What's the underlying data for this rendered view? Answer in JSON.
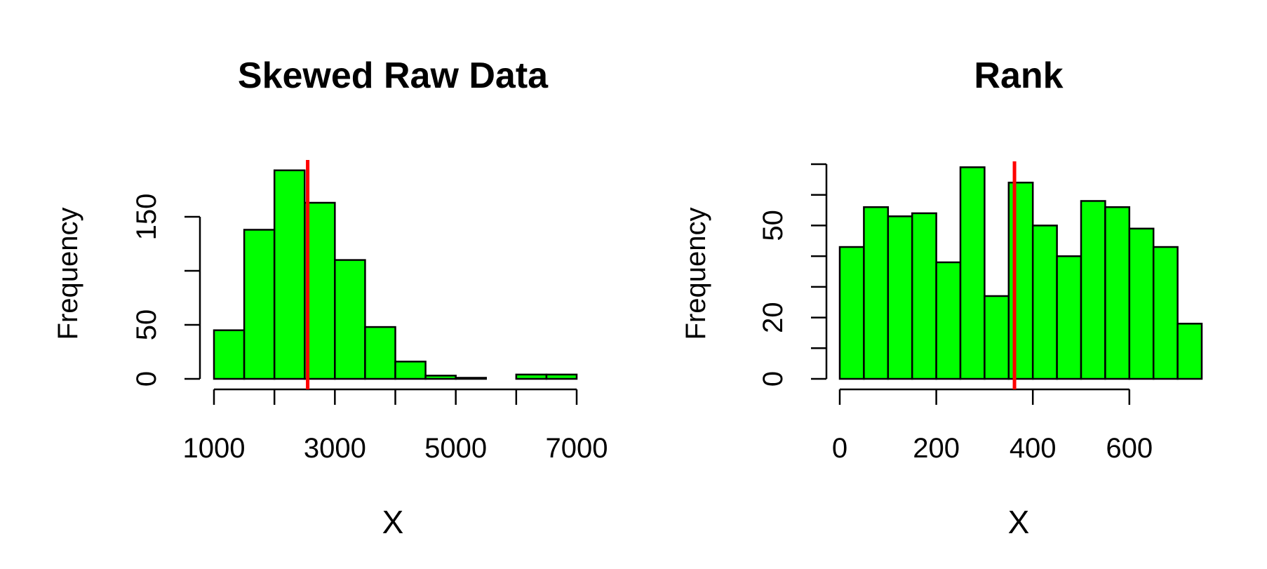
{
  "colors": {
    "bar_fill": "#00ff00",
    "bar_stroke": "#000000",
    "marker_line": "#ff0000"
  },
  "chart_data": [
    {
      "type": "bar",
      "title": "Skewed Raw Data",
      "xlabel": "X",
      "ylabel": "Frequency",
      "bin_edges": [
        1000,
        1500,
        2000,
        2500,
        3000,
        3500,
        4000,
        4500,
        5000,
        5500,
        6000,
        6500,
        7000
      ],
      "values": [
        45,
        138,
        193,
        163,
        110,
        48,
        16,
        3,
        1,
        0,
        4,
        4
      ],
      "xlim": [
        1000,
        7000
      ],
      "ylim": [
        0,
        200
      ],
      "xticks": [
        1000,
        2000,
        3000,
        4000,
        5000,
        6000,
        7000
      ],
      "xtick_labels": [
        "1000",
        "3000",
        "5000",
        "7000"
      ],
      "yticks": [
        0,
        50,
        100,
        150
      ],
      "ytick_labels": [
        "0",
        "50",
        "150"
      ],
      "vline": 2550
    },
    {
      "type": "bar",
      "title": "Rank",
      "xlabel": "X",
      "ylabel": "Frequency",
      "bin_edges": [
        0,
        50,
        100,
        150,
        200,
        250,
        300,
        350,
        400,
        450,
        500,
        550,
        600,
        650,
        700,
        750
      ],
      "values": [
        43,
        56,
        53,
        54,
        38,
        69,
        27,
        64,
        50,
        40,
        58,
        56,
        49,
        43,
        18
      ],
      "xlim": [
        0,
        750
      ],
      "ylim": [
        0,
        70
      ],
      "xticks": [
        0,
        200,
        400,
        600
      ],
      "xtick_labels": [
        "0",
        "200",
        "400",
        "600"
      ],
      "yticks": [
        0,
        10,
        20,
        30,
        40,
        50,
        60,
        70
      ],
      "ytick_labels": [
        "0",
        "20",
        "50"
      ],
      "ytick_label_values": [
        0,
        20,
        50
      ],
      "vline": 362
    }
  ]
}
